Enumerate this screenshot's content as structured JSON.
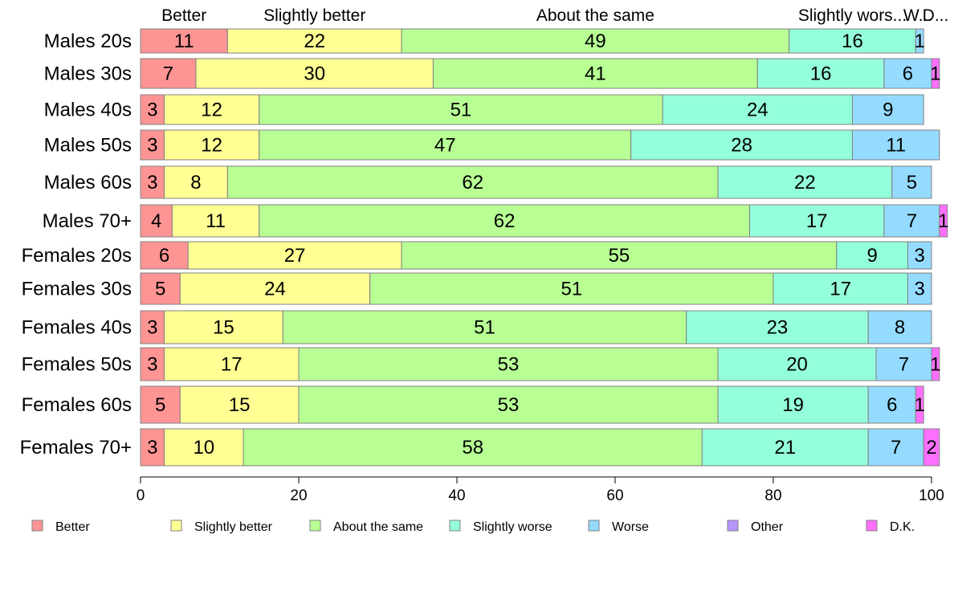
{
  "chart_data": {
    "type": "bar",
    "orientation": "horizontal",
    "stacked": true,
    "categories": [
      "Males 20s",
      "Males 30s",
      "Males 40s",
      "Males 50s",
      "Males 60s",
      "Males 70+",
      "Females 20s",
      "Females 30s",
      "Females 40s",
      "Females 50s",
      "Females 60s",
      "Females 70+"
    ],
    "series": [
      {
        "name": "Better",
        "color": "#FF9494",
        "values": [
          11,
          7,
          3,
          3,
          3,
          4,
          6,
          5,
          3,
          3,
          5,
          3
        ]
      },
      {
        "name": "Slightly better",
        "color": "#FFFF94",
        "values": [
          22,
          30,
          12,
          12,
          8,
          11,
          27,
          24,
          15,
          17,
          15,
          10
        ]
      },
      {
        "name": "About the same",
        "color": "#B8FF94",
        "values": [
          49,
          41,
          51,
          47,
          62,
          62,
          55,
          51,
          51,
          53,
          53,
          58
        ]
      },
      {
        "name": "Slightly worse",
        "color": "#94FFDB",
        "values": [
          16,
          16,
          24,
          28,
          22,
          17,
          9,
          17,
          23,
          20,
          19,
          21
        ]
      },
      {
        "name": "Worse",
        "color": "#94DBFF",
        "values": [
          1,
          6,
          9,
          11,
          5,
          7,
          3,
          3,
          8,
          7,
          6,
          7
        ]
      },
      {
        "name": "Other",
        "color": "#B894FF",
        "values": [
          0,
          0,
          0,
          0,
          0,
          0,
          0,
          0,
          0,
          0,
          0,
          0
        ]
      },
      {
        "name": "D.K.",
        "color": "#FF70FF",
        "values": [
          0,
          1,
          0,
          0,
          0,
          1,
          0,
          0,
          0,
          1,
          1,
          2
        ]
      }
    ],
    "top_labels": [
      {
        "text": "Better",
        "series": 0
      },
      {
        "text": "Slightly better",
        "series": 1
      },
      {
        "text": "About the same",
        "series": 2
      },
      {
        "text": "Slightly wors...",
        "series": 3
      },
      {
        "text": "W...",
        "series": 4
      },
      {
        "text": "D...",
        "series": 6
      }
    ],
    "xlim": [
      0,
      100
    ],
    "xticks": [
      0,
      20,
      40,
      60,
      80,
      100
    ],
    "grid": false,
    "legend": "bottom"
  }
}
